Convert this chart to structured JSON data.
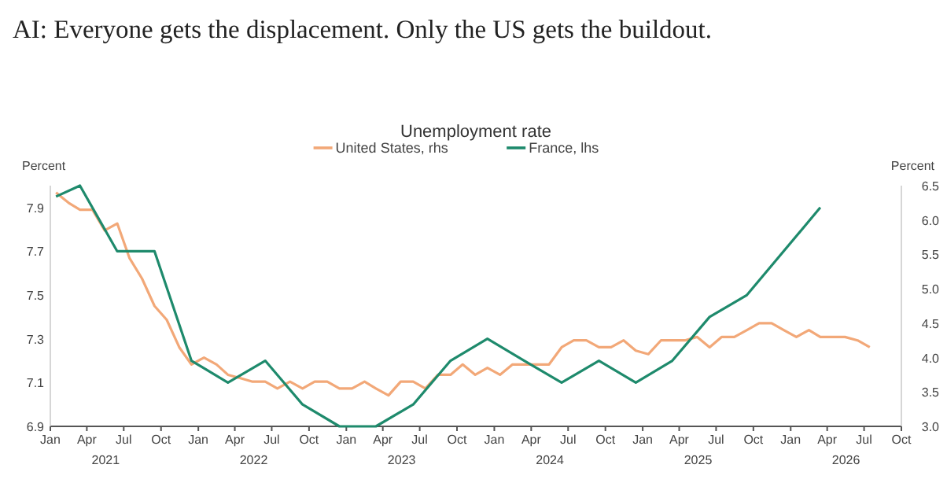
{
  "chart_data": {
    "type": "line",
    "title": "AI: Everyone gets the displacement. Only the US gets the buildout.",
    "subtitle": "Unemployment rate",
    "ylabel": "Percent",
    "y2label": "Percent",
    "legend": "top",
    "grid": false,
    "marker": "none",
    "line_style": "solid",
    "xlim": [
      "2021-01-01",
      "2026-10-01"
    ],
    "xticks": [
      {
        "value": "2021-01",
        "label": "Jan"
      },
      {
        "value": "2021-04",
        "label": "Apr"
      },
      {
        "value": "2021-07",
        "label": "Jul"
      },
      {
        "value": "2021-10",
        "label": "Oct"
      },
      {
        "value": "2022-01",
        "label": "Jan"
      },
      {
        "value": "2022-04",
        "label": "Apr"
      },
      {
        "value": "2022-07",
        "label": "Jul"
      },
      {
        "value": "2022-10",
        "label": "Oct"
      },
      {
        "value": "2023-01",
        "label": "Jan"
      },
      {
        "value": "2023-04",
        "label": "Apr"
      },
      {
        "value": "2023-07",
        "label": "Jul"
      },
      {
        "value": "2023-10",
        "label": "Oct"
      },
      {
        "value": "2024-01",
        "label": "Jan"
      },
      {
        "value": "2024-04",
        "label": "Apr"
      },
      {
        "value": "2024-07",
        "label": "Jul"
      },
      {
        "value": "2024-10",
        "label": "Oct"
      },
      {
        "value": "2025-01",
        "label": "Jan"
      },
      {
        "value": "2025-04",
        "label": "Apr"
      },
      {
        "value": "2025-07",
        "label": "Jul"
      },
      {
        "value": "2025-10",
        "label": "Oct"
      },
      {
        "value": "2026-01",
        "label": "Jan"
      },
      {
        "value": "2026-04",
        "label": "Apr"
      },
      {
        "value": "2026-07",
        "label": "Jul"
      },
      {
        "value": "2026-10",
        "label": "Oct"
      }
    ],
    "ylim": [
      6.9,
      8.0
    ],
    "yticks": [
      6.9,
      7.1,
      7.3,
      7.5,
      7.7,
      7.9
    ],
    "y2lim": [
      3.0,
      6.5
    ],
    "y2ticks": [
      {
        "value": 3,
        "label": "3.0"
      },
      3.5,
      {
        "value": 4,
        "label": "4.0"
      },
      4.5,
      {
        "value": 5,
        "label": "5.0"
      },
      5.5,
      {
        "value": 6,
        "label": "6.0"
      },
      6.5
    ],
    "annotations": [
      "2021",
      "2022",
      "2023",
      "2024",
      "2025",
      "2026"
    ],
    "series": [
      {
        "name": "United States, rhs",
        "color": "#f2a878",
        "axis": "y2",
        "x": [
          "2021-01-15",
          "2021-02-15",
          "2021-03-15",
          "2021-04-15",
          "2021-05-15",
          "2021-06-15",
          "2021-07-15",
          "2021-08-15",
          "2021-09-15",
          "2021-10-15",
          "2021-11-15",
          "2021-12-15",
          "2022-01-15",
          "2022-02-15",
          "2022-03-15",
          "2022-04-15",
          "2022-05-15",
          "2022-06-15",
          "2022-07-15",
          "2022-08-15",
          "2022-09-15",
          "2022-10-15",
          "2022-11-15",
          "2022-12-15",
          "2023-01-15",
          "2023-02-15",
          "2023-03-15",
          "2023-04-15",
          "2023-05-15",
          "2023-06-15",
          "2023-07-15",
          "2023-08-15",
          "2023-09-15",
          "2023-10-15",
          "2023-11-15",
          "2023-12-15",
          "2024-01-15",
          "2024-02-15",
          "2024-03-15",
          "2024-04-15",
          "2024-05-15",
          "2024-06-15",
          "2024-07-15",
          "2024-08-15",
          "2024-09-15",
          "2024-10-15",
          "2024-11-15",
          "2024-12-15",
          "2025-01-15",
          "2025-02-15",
          "2025-03-15",
          "2025-04-15",
          "2025-05-15",
          "2025-06-15",
          "2025-07-15",
          "2025-08-15",
          "2025-09-15",
          "2025-10-15",
          "2025-11-15",
          "2025-12-15",
          "2026-01-15",
          "2026-02-15",
          "2026-03-15",
          "2026-04-15",
          "2026-05-15",
          "2026-06-15",
          "2026-07-15"
        ],
        "values": [
          6.4,
          6.25,
          6.15,
          6.15,
          5.85,
          5.95,
          5.45,
          5.15,
          4.75,
          4.55,
          4.15,
          3.9,
          4.0,
          3.9,
          3.75,
          3.7,
          3.65,
          3.65,
          3.55,
          3.65,
          3.55,
          3.65,
          3.65,
          3.55,
          3.55,
          3.65,
          3.55,
          3.45,
          3.65,
          3.65,
          3.55,
          3.75,
          3.75,
          3.9,
          3.75,
          3.85,
          3.75,
          3.9,
          3.9,
          3.9,
          3.9,
          4.15,
          4.25,
          4.25,
          4.15,
          4.15,
          4.25,
          4.1,
          4.05,
          4.25,
          4.25,
          4.25,
          4.3,
          4.15,
          4.3,
          4.3,
          4.4,
          4.5,
          4.5,
          4.4,
          4.3,
          4.4,
          4.3,
          4.3,
          4.3,
          4.25,
          4.15
        ]
      },
      {
        "name": "France, lhs",
        "color": "#1e8a6c",
        "x": [
          "2021-01-15",
          "2021-03-15",
          "2021-06-15",
          "2021-09-15",
          "2021-12-15",
          "2022-03-15",
          "2022-06-15",
          "2022-09-15",
          "2022-12-15",
          "2023-03-15",
          "2023-06-15",
          "2023-09-15",
          "2023-12-15",
          "2024-03-15",
          "2024-06-15",
          "2024-09-15",
          "2024-12-15",
          "2025-03-15",
          "2025-06-15",
          "2025-09-15",
          "2026-03-15"
        ],
        "values": [
          7.95,
          8.0,
          7.7,
          7.7,
          7.2,
          7.1,
          7.2,
          7.0,
          6.9,
          6.9,
          7.0,
          7.2,
          7.3,
          7.2,
          7.1,
          7.2,
          7.1,
          7.2,
          7.4,
          7.5,
          7.9
        ]
      }
    ]
  }
}
